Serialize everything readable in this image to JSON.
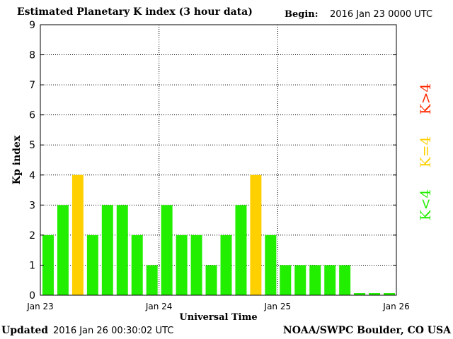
{
  "header": {
    "title": "Estimated Planetary K index (3 hour data)",
    "begin_label": "Begin:",
    "begin_value": "2016 Jan 23 0000 UTC"
  },
  "footer": {
    "updated_label": "Updated",
    "updated_value": "2016 Jan 26 00:30:02 UTC",
    "credit": "NOAA/SWPC Boulder, CO USA"
  },
  "legend": [
    {
      "label": "K>4",
      "color": "#ff2a00"
    },
    {
      "label": "K=4",
      "color": "#ffd000"
    },
    {
      "label": "K<4",
      "color": "#22ee00"
    }
  ],
  "chart_data": {
    "type": "bar",
    "title": "Estimated Planetary K index (3 hour data)",
    "xlabel": "Universal Time",
    "ylabel": "Kp index",
    "ylim": [
      0,
      9
    ],
    "yticks": [
      0,
      1,
      2,
      3,
      4,
      5,
      6,
      7,
      8,
      9
    ],
    "xticks": [
      "Jan 23",
      "Jan 24",
      "Jan 25",
      "Jan 26"
    ],
    "grid": true,
    "interval_hours": 3,
    "values": [
      2,
      3,
      4,
      2,
      3,
      3,
      2,
      1,
      3,
      2,
      2,
      1,
      2,
      3,
      4,
      2,
      1,
      1,
      1,
      1,
      1,
      0.07,
      0.07,
      0.07
    ],
    "colors": {
      "below": "#22ee00",
      "equal": "#ffd000",
      "above": "#ff2a00"
    }
  }
}
